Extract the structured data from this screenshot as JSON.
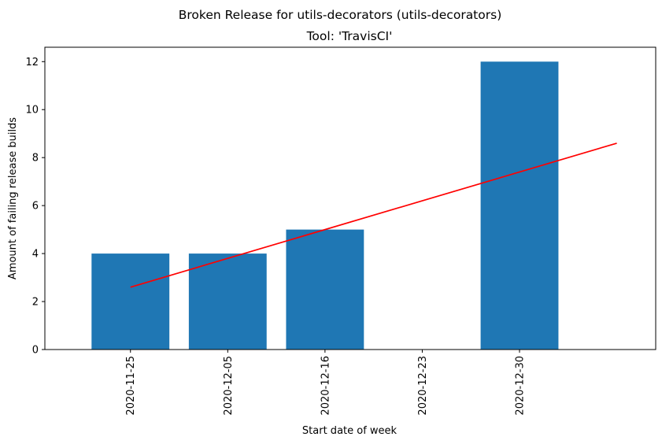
{
  "chart_data": {
    "type": "bar",
    "suptitle": "Broken Release for utils-decorators (utils-decorators)",
    "title": "Tool: 'TravisCI'",
    "xlabel": "Start date of week",
    "ylabel": "Amount of failing release builds",
    "categories": [
      "2020-11-25",
      "2020-12-05",
      "2020-12-16",
      "2020-12-23",
      "2020-12-30"
    ],
    "values": [
      4,
      4,
      5,
      0,
      12
    ],
    "ylim": [
      0,
      12.6
    ],
    "yticks": [
      0,
      2,
      4,
      6,
      8,
      10,
      12
    ],
    "grid": false,
    "bar_color": "#1f77b4",
    "trend_line": {
      "color": "#ff0000",
      "x_start": "2020-11-25",
      "y_start": 2.6,
      "y_end": 8.6
    }
  }
}
